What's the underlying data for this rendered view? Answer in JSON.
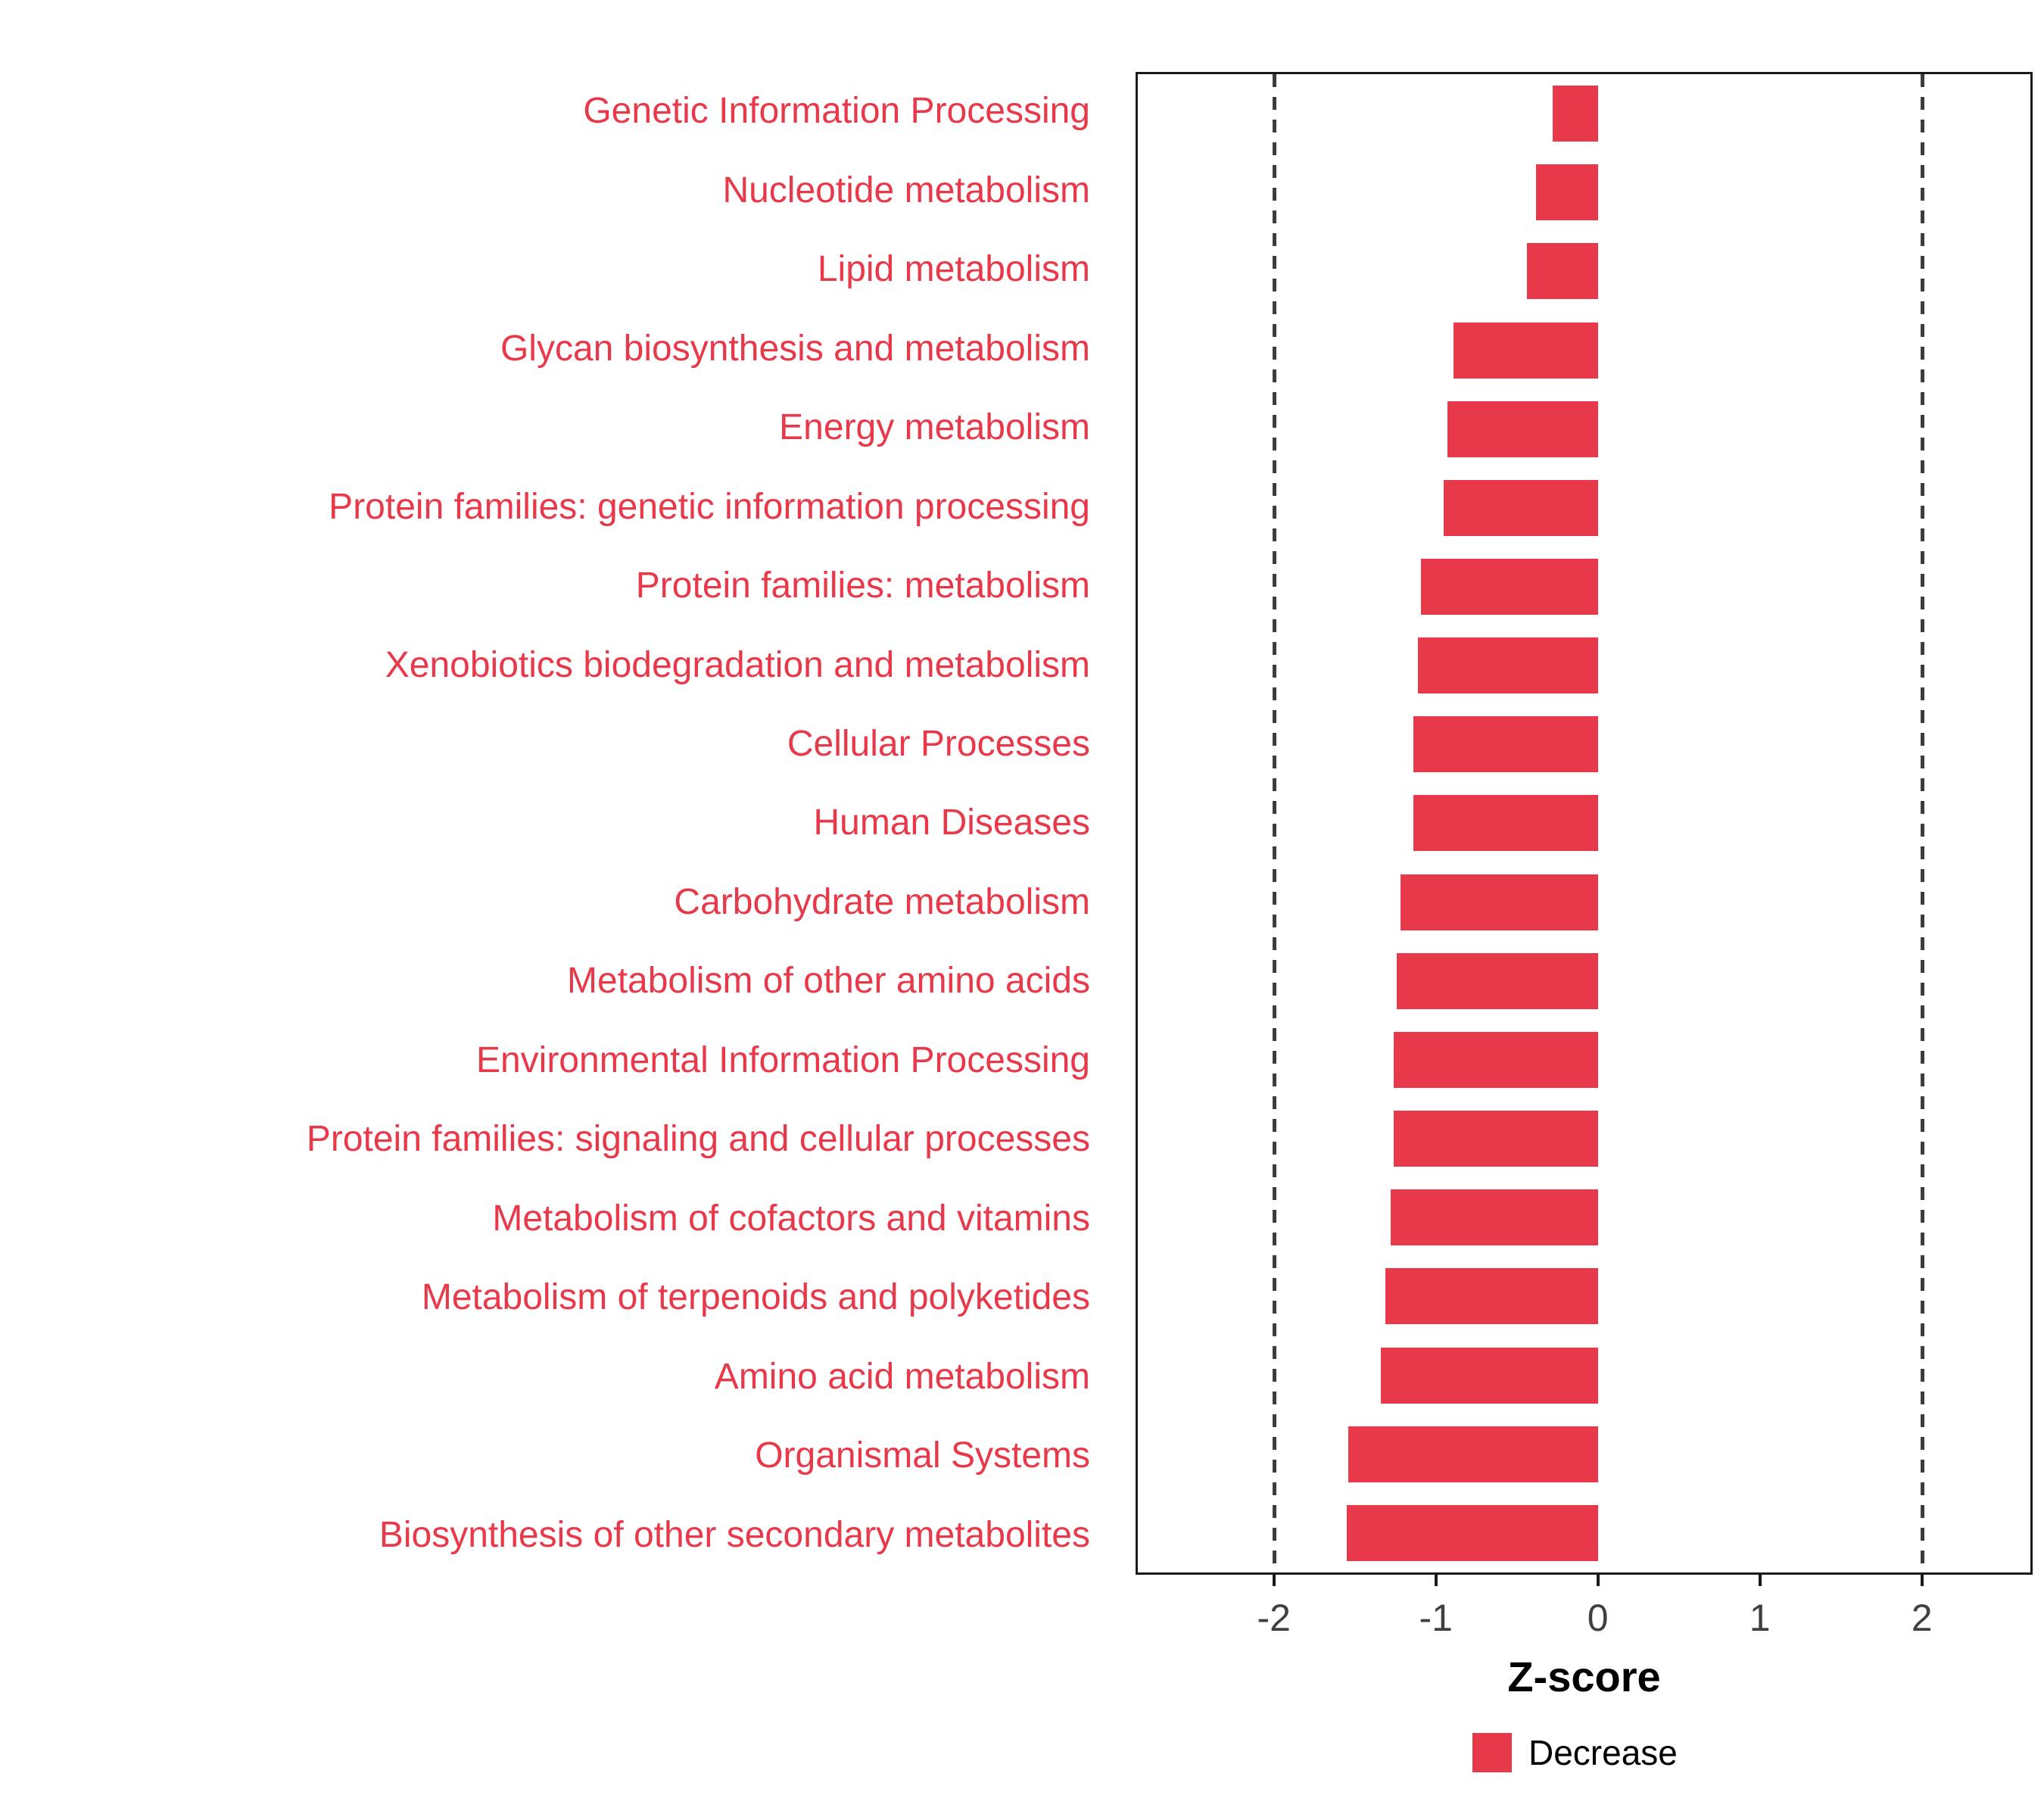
{
  "chart_data": {
    "type": "bar",
    "orientation": "horizontal",
    "title": "",
    "xlabel": "Z-score",
    "ylabel": "",
    "xlim": [
      -2.84,
      2.67
    ],
    "x_ticks": [
      -2,
      -1,
      0,
      1,
      2
    ],
    "x_tick_labels": [
      "-2",
      "-1",
      "0",
      "1",
      "2"
    ],
    "threshold_lines": [
      -2,
      2
    ],
    "grid": "off",
    "legend_position": "bottom",
    "bar_color": "#E8394B",
    "category_label_color": "#E8394B",
    "categories": [
      "Genetic Information Processing",
      "Nucleotide metabolism",
      "Lipid metabolism",
      "Glycan biosynthesis and metabolism",
      "Energy metabolism",
      "Protein families: genetic information processing",
      "Protein families: metabolism",
      "Xenobiotics biodegradation and metabolism",
      "Cellular Processes",
      "Human Diseases",
      "Carbohydrate metabolism",
      "Metabolism of other amino acids",
      "Environmental Information Processing",
      "Protein families: signaling and cellular processes",
      "Metabolism of cofactors and vitamins",
      "Metabolism of terpenoids and polyketides",
      "Amino acid metabolism",
      "Organismal Systems",
      "Biosynthesis of other secondary metabolites"
    ],
    "values": [
      -0.28,
      -0.38,
      -0.44,
      -0.89,
      -0.93,
      -0.95,
      -1.09,
      -1.11,
      -1.14,
      -1.14,
      -1.22,
      -1.24,
      -1.26,
      -1.26,
      -1.28,
      -1.31,
      -1.34,
      -1.54,
      -1.55
    ],
    "series_name": "Decrease",
    "legend": {
      "label": "Decrease",
      "color": "#E8394B"
    }
  }
}
